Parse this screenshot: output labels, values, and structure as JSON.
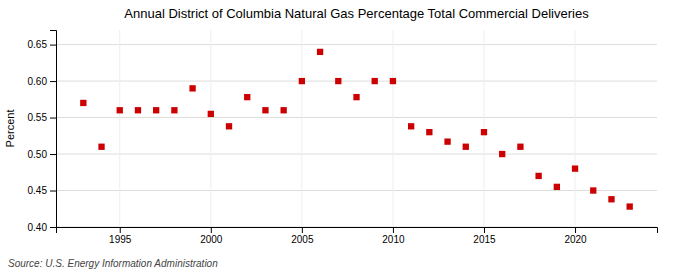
{
  "chart_data": {
    "type": "scatter",
    "title": "Annual District of Columbia Natural Gas Percentage Total Commercial Deliveries",
    "ylabel": "Percent",
    "annotations": [
      "Source: U.S. Energy Information Administration"
    ],
    "x": [
      1993,
      1994,
      1995,
      1996,
      1997,
      1998,
      1999,
      2000,
      2001,
      2002,
      2003,
      2004,
      2005,
      2006,
      2007,
      2008,
      2009,
      2010,
      2011,
      2012,
      2013,
      2014,
      2015,
      2016,
      2017,
      2018,
      2019,
      2020,
      2021,
      2022,
      2023
    ],
    "values": [
      0.57,
      0.51,
      0.56,
      0.56,
      0.56,
      0.56,
      0.59,
      0.555,
      0.538,
      0.578,
      0.56,
      0.56,
      0.6,
      0.64,
      0.6,
      0.578,
      0.6,
      0.6,
      0.538,
      0.53,
      0.517,
      0.51,
      0.53,
      0.5,
      0.51,
      0.47,
      0.455,
      0.48,
      0.45,
      0.438,
      0.428
    ],
    "xlim": [
      1991.5,
      2024.5
    ],
    "xticks": [
      1995,
      2000,
      2005,
      2010,
      2015,
      2020
    ],
    "ylim": [
      0.4,
      0.67
    ],
    "yticks": [
      {
        "value": 0.4,
        "label": "0.40"
      },
      0.45,
      {
        "value": 0.5,
        "label": "0.50"
      },
      0.55,
      {
        "value": 0.6,
        "label": "0.60"
      },
      0.65
    ],
    "color": "#cc0000",
    "marker": "square",
    "grid": true
  }
}
